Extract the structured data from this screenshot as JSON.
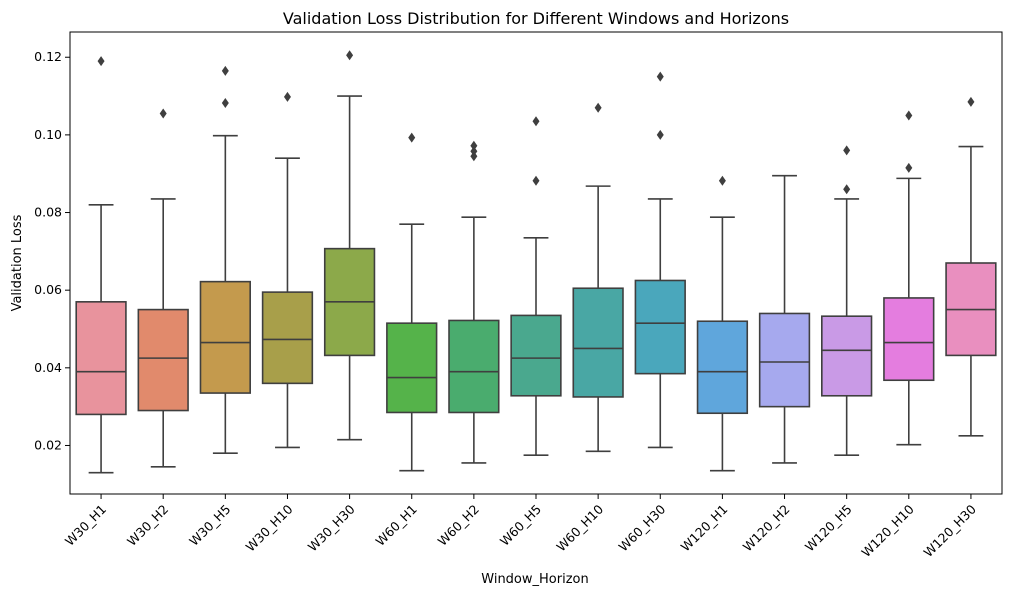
{
  "chart_data": {
    "type": "box",
    "title": "Validation Loss Distribution for Different Windows and Horizons",
    "xlabel": "Window_Horizon",
    "ylabel": "Validation Loss",
    "ylim": [
      0.0075,
      0.1265
    ],
    "yticks": [
      0.02,
      0.04,
      0.06,
      0.08,
      0.1,
      0.12
    ],
    "ytick_labels": [
      "0.02",
      "0.04",
      "0.06",
      "0.08",
      "0.10",
      "0.12"
    ],
    "grid": false,
    "legend": "none",
    "categories": [
      "W30_H1",
      "W30_H2",
      "W30_H5",
      "W30_H10",
      "W30_H30",
      "W60_H1",
      "W60_H2",
      "W60_H5",
      "W60_H10",
      "W60_H30",
      "W120_H1",
      "W120_H2",
      "W120_H5",
      "W120_H10",
      "W120_H30"
    ],
    "colors": [
      "#e8939d",
      "#e18a6c",
      "#c49a4d",
      "#a89f4a",
      "#8ca94a",
      "#55b34a",
      "#4aac6e",
      "#4aa88e",
      "#49a7a4",
      "#4aa7bc",
      "#5fa6dc",
      "#a6a9ee",
      "#c99ae6",
      "#e47ddf",
      "#e98fbf"
    ],
    "boxes": [
      {
        "category": "W30_H1",
        "whisker_low": 0.013,
        "q1": 0.028,
        "median": 0.039,
        "q3": 0.057,
        "whisker_high": 0.082,
        "outliers": [
          0.119
        ]
      },
      {
        "category": "W30_H2",
        "whisker_low": 0.0145,
        "q1": 0.029,
        "median": 0.0425,
        "q3": 0.055,
        "whisker_high": 0.0835,
        "outliers": [
          0.1055
        ]
      },
      {
        "category": "W30_H5",
        "whisker_low": 0.018,
        "q1": 0.0335,
        "median": 0.0465,
        "q3": 0.0622,
        "whisker_high": 0.0998,
        "outliers": [
          0.1082,
          0.1165
        ]
      },
      {
        "category": "W30_H10",
        "whisker_low": 0.0195,
        "q1": 0.036,
        "median": 0.0473,
        "q3": 0.0595,
        "whisker_high": 0.094,
        "outliers": [
          0.1098
        ]
      },
      {
        "category": "W30_H30",
        "whisker_low": 0.0215,
        "q1": 0.0432,
        "median": 0.057,
        "q3": 0.0707,
        "whisker_high": 0.11,
        "outliers": [
          0.1205
        ]
      },
      {
        "category": "W60_H1",
        "whisker_low": 0.0135,
        "q1": 0.0285,
        "median": 0.0375,
        "q3": 0.0515,
        "whisker_high": 0.077,
        "outliers": [
          0.0993
        ]
      },
      {
        "category": "W60_H2",
        "whisker_low": 0.0155,
        "q1": 0.0285,
        "median": 0.039,
        "q3": 0.0522,
        "whisker_high": 0.0788,
        "outliers": [
          0.0945,
          0.0958,
          0.0972
        ]
      },
      {
        "category": "W60_H5",
        "whisker_low": 0.0175,
        "q1": 0.0328,
        "median": 0.0425,
        "q3": 0.0535,
        "whisker_high": 0.0735,
        "outliers": [
          0.0882,
          0.1035
        ]
      },
      {
        "category": "W60_H10",
        "whisker_low": 0.0185,
        "q1": 0.0325,
        "median": 0.045,
        "q3": 0.0605,
        "whisker_high": 0.0868,
        "outliers": [
          0.107
        ]
      },
      {
        "category": "W60_H30",
        "whisker_low": 0.0195,
        "q1": 0.0385,
        "median": 0.0515,
        "q3": 0.0625,
        "whisker_high": 0.0835,
        "outliers": [
          0.1,
          0.115
        ]
      },
      {
        "category": "W120_H1",
        "whisker_low": 0.0135,
        "q1": 0.0283,
        "median": 0.039,
        "q3": 0.052,
        "whisker_high": 0.0788,
        "outliers": [
          0.0882
        ]
      },
      {
        "category": "W120_H2",
        "whisker_low": 0.0155,
        "q1": 0.03,
        "median": 0.0415,
        "q3": 0.054,
        "whisker_high": 0.0895,
        "outliers": []
      },
      {
        "category": "W120_H5",
        "whisker_low": 0.0175,
        "q1": 0.0328,
        "median": 0.0445,
        "q3": 0.0533,
        "whisker_high": 0.0835,
        "outliers": [
          0.086,
          0.096
        ]
      },
      {
        "category": "W120_H10",
        "whisker_low": 0.0202,
        "q1": 0.0368,
        "median": 0.0465,
        "q3": 0.058,
        "whisker_high": 0.0888,
        "outliers": [
          0.0915,
          0.105
        ]
      },
      {
        "category": "W120_H30",
        "whisker_low": 0.0225,
        "q1": 0.0432,
        "median": 0.055,
        "q3": 0.067,
        "whisker_high": 0.097,
        "outliers": [
          0.1085
        ]
      }
    ]
  }
}
